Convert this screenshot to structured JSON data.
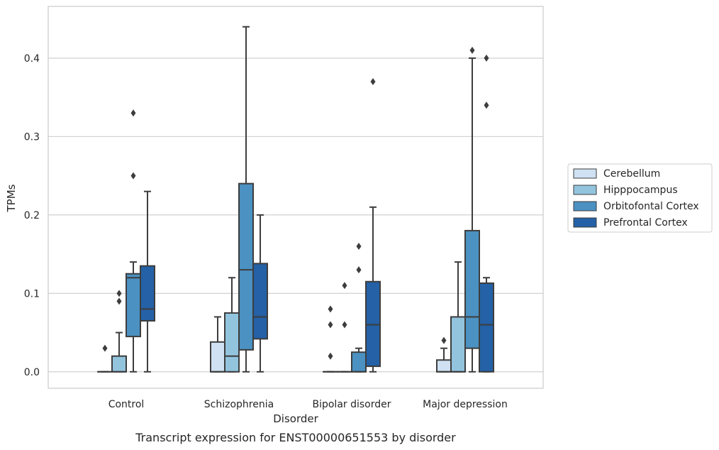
{
  "chart_data": {
    "type": "box",
    "caption": "Transcript expression for ENST00000651553 by disorder",
    "xlabel": "Disorder",
    "ylabel": "TPMs",
    "ylim": [
      -0.021,
      0.466
    ],
    "yticks": [
      0.0,
      0.1,
      0.2,
      0.3,
      0.4
    ],
    "ytick_labels": [
      "0.0",
      "0.1",
      "0.2",
      "0.3",
      "0.4"
    ],
    "grid": "horizontal",
    "legend_position": "right",
    "categories": [
      "Control",
      "Schizophrenia",
      "Bipolar disorder",
      "Major depression"
    ],
    "series": [
      {
        "name": "Cerebellum",
        "color": "#cfe1f2",
        "boxes": [
          {
            "category": "Control",
            "whisker_low": 0.0,
            "q1": 0.0,
            "median": 0.0,
            "q3": 0.0,
            "whisker_high": 0.0,
            "outliers": [
              0.03
            ]
          },
          {
            "category": "Schizophrenia",
            "whisker_low": 0.0,
            "q1": 0.0,
            "median": 0.0,
            "q3": 0.038,
            "whisker_high": 0.07,
            "outliers": []
          },
          {
            "category": "Bipolar disorder",
            "whisker_low": 0.0,
            "q1": 0.0,
            "median": 0.0,
            "q3": 0.0,
            "whisker_high": 0.0,
            "outliers": [
              0.02,
              0.06,
              0.08
            ]
          },
          {
            "category": "Major depression",
            "whisker_low": 0.0,
            "q1": 0.0,
            "median": 0.0,
            "q3": 0.015,
            "whisker_high": 0.03,
            "outliers": [
              0.04
            ]
          }
        ]
      },
      {
        "name": "Hipppocampus",
        "color": "#93c4de",
        "boxes": [
          {
            "category": "Control",
            "whisker_low": 0.0,
            "q1": 0.0,
            "median": 0.0,
            "q3": 0.02,
            "whisker_high": 0.05,
            "outliers": [
              0.09,
              0.1
            ]
          },
          {
            "category": "Schizophrenia",
            "whisker_low": 0.0,
            "q1": 0.0,
            "median": 0.02,
            "q3": 0.075,
            "whisker_high": 0.12,
            "outliers": []
          },
          {
            "category": "Bipolar disorder",
            "whisker_low": 0.0,
            "q1": 0.0,
            "median": 0.0,
            "q3": 0.0,
            "whisker_high": 0.0,
            "outliers": [
              0.06,
              0.11
            ]
          },
          {
            "category": "Major depression",
            "whisker_low": 0.0,
            "q1": 0.0,
            "median": 0.0,
            "q3": 0.07,
            "whisker_high": 0.14,
            "outliers": []
          }
        ]
      },
      {
        "name": "Orbitofontal Cortex",
        "color": "#4b91c2",
        "boxes": [
          {
            "category": "Control",
            "whisker_low": 0.0,
            "q1": 0.045,
            "median": 0.12,
            "q3": 0.125,
            "whisker_high": 0.14,
            "outliers": [
              0.25,
              0.33
            ]
          },
          {
            "category": "Schizophrenia",
            "whisker_low": 0.0,
            "q1": 0.028,
            "median": 0.13,
            "q3": 0.24,
            "whisker_high": 0.44,
            "outliers": []
          },
          {
            "category": "Bipolar disorder",
            "whisker_low": 0.0,
            "q1": 0.0,
            "median": 0.0,
            "q3": 0.025,
            "whisker_high": 0.03,
            "outliers": [
              0.13,
              0.16
            ]
          },
          {
            "category": "Major depression",
            "whisker_low": 0.0,
            "q1": 0.03,
            "median": 0.07,
            "q3": 0.18,
            "whisker_high": 0.4,
            "outliers": [
              0.41
            ]
          }
        ]
      },
      {
        "name": "Prefrontal Cortex",
        "color": "#2461a6",
        "boxes": [
          {
            "category": "Control",
            "whisker_low": 0.0,
            "q1": 0.065,
            "median": 0.08,
            "q3": 0.135,
            "whisker_high": 0.23,
            "outliers": []
          },
          {
            "category": "Schizophrenia",
            "whisker_low": 0.0,
            "q1": 0.042,
            "median": 0.07,
            "q3": 0.138,
            "whisker_high": 0.2,
            "outliers": []
          },
          {
            "category": "Bipolar disorder",
            "whisker_low": 0.0,
            "q1": 0.007,
            "median": 0.06,
            "q3": 0.115,
            "whisker_high": 0.21,
            "outliers": [
              0.37
            ]
          },
          {
            "category": "Major depression",
            "whisker_low": 0.0,
            "q1": 0.0,
            "median": 0.06,
            "q3": 0.113,
            "whisker_high": 0.12,
            "outliers": [
              0.34,
              0.4
            ]
          }
        ]
      }
    ]
  }
}
